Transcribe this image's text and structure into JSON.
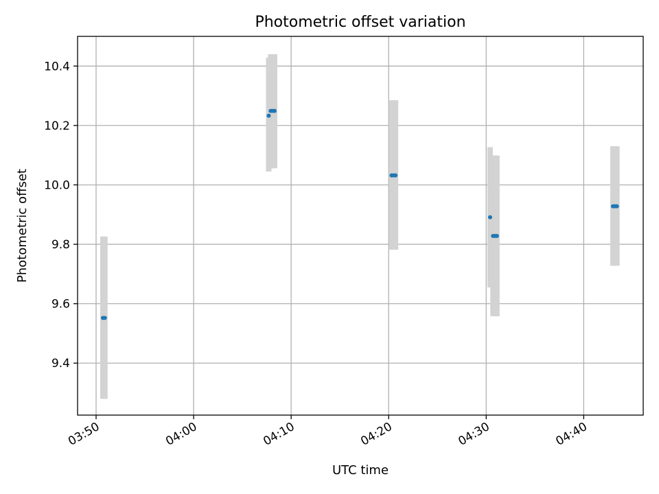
{
  "chart_data": {
    "type": "scatter",
    "title": "Photometric offset variation",
    "xlabel": "UTC time",
    "ylabel": "Photometric offset",
    "grid": true,
    "xlim_minutes": [
      228.1,
      286.1
    ],
    "ylim": [
      9.225,
      10.5
    ],
    "x_ticks": [
      {
        "minutes": 230,
        "label": "03:50"
      },
      {
        "minutes": 240,
        "label": "04:00"
      },
      {
        "minutes": 250,
        "label": "04:10"
      },
      {
        "minutes": 260,
        "label": "04:20"
      },
      {
        "minutes": 270,
        "label": "04:30"
      },
      {
        "minutes": 280,
        "label": "04:40"
      }
    ],
    "y_ticks": [
      {
        "value": 9.4,
        "label": "9.4"
      },
      {
        "value": 9.6,
        "label": "9.6"
      },
      {
        "value": 9.8,
        "label": "9.8"
      },
      {
        "value": 10.0,
        "label": "10.0"
      },
      {
        "value": 10.2,
        "label": "10.2"
      },
      {
        "value": 10.4,
        "label": "10.4"
      }
    ],
    "errorbar_color": "#d3d3d3",
    "marker_color": "#1f77b4",
    "points": [
      {
        "time": "03:50:42",
        "minutes": 230.7,
        "value": 9.552,
        "low": 9.28,
        "high": 9.826
      },
      {
        "time": "03:50:54",
        "minutes": 230.9,
        "value": 9.552,
        "low": 9.28,
        "high": 9.826
      },
      {
        "time": "04:07:42",
        "minutes": 247.7,
        "value": 10.233,
        "low": 10.045,
        "high": 10.428
      },
      {
        "time": "04:07:54",
        "minutes": 247.9,
        "value": 10.249,
        "low": 10.056,
        "high": 10.44
      },
      {
        "time": "04:08:06",
        "minutes": 248.1,
        "value": 10.249,
        "low": 10.056,
        "high": 10.44
      },
      {
        "time": "04:08:18",
        "minutes": 248.3,
        "value": 10.249,
        "low": 10.056,
        "high": 10.44
      },
      {
        "time": "04:20:18",
        "minutes": 260.3,
        "value": 10.032,
        "low": 9.782,
        "high": 10.285
      },
      {
        "time": "04:20:30",
        "minutes": 260.5,
        "value": 10.032,
        "low": 9.782,
        "high": 10.285
      },
      {
        "time": "04:20:42",
        "minutes": 260.7,
        "value": 10.032,
        "low": 9.782,
        "high": 10.285
      },
      {
        "time": "04:30:24",
        "minutes": 270.4,
        "value": 9.891,
        "low": 9.655,
        "high": 10.127
      },
      {
        "time": "04:30:42",
        "minutes": 270.7,
        "value": 9.828,
        "low": 9.558,
        "high": 10.099
      },
      {
        "time": "04:30:54",
        "minutes": 270.9,
        "value": 9.828,
        "low": 9.558,
        "high": 10.099
      },
      {
        "time": "04:31:06",
        "minutes": 271.1,
        "value": 9.828,
        "low": 9.558,
        "high": 10.099
      },
      {
        "time": "04:43:00",
        "minutes": 283.0,
        "value": 9.928,
        "low": 9.728,
        "high": 10.13
      },
      {
        "time": "04:43:12",
        "minutes": 283.2,
        "value": 9.928,
        "low": 9.728,
        "high": 10.13
      },
      {
        "time": "04:43:24",
        "minutes": 283.4,
        "value": 9.928,
        "low": 9.728,
        "high": 10.13
      }
    ]
  }
}
